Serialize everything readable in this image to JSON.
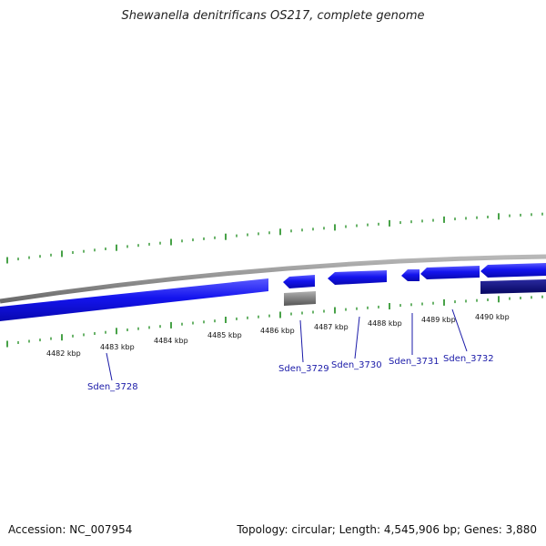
{
  "title": "Shewanella denitrificans OS217, complete genome",
  "footer": {
    "accession": "Accession: NC_007954",
    "summary": "Topology: circular; Length: 4,545,906 bp; Genes: 3,880"
  },
  "colors": {
    "backbone": "#8a8a8a",
    "gene_forward": "#1010ee",
    "gene_reverse": "#0a0a80",
    "gene_other": "#777777",
    "ticks": "#1a8a1a",
    "gene_label": "#1a1aa8",
    "leader": "#1a1aa8"
  },
  "scale": {
    "unit": "kbp",
    "labels": [
      {
        "kbp": 4482,
        "text": "4482 kbp"
      },
      {
        "kbp": 4483,
        "text": "4483 kbp"
      },
      {
        "kbp": 4484,
        "text": "4484 kbp"
      },
      {
        "kbp": 4485,
        "text": "4485 kbp"
      },
      {
        "kbp": 4486,
        "text": "4486 kbp"
      },
      {
        "kbp": 4487,
        "text": "4487 kbp"
      },
      {
        "kbp": 4488,
        "text": "4488 kbp"
      },
      {
        "kbp": 4489,
        "text": "4489 kbp"
      },
      {
        "kbp": 4490,
        "text": "4490 kbp"
      }
    ]
  },
  "genes": [
    {
      "name": "Sden_3728",
      "label": "Sden_3728"
    },
    {
      "name": "Sden_3729",
      "label": "Sden_3729"
    },
    {
      "name": "Sden_3730",
      "label": "Sden_3730"
    },
    {
      "name": "Sden_3731",
      "label": "Sden_3731"
    },
    {
      "name": "Sden_3732",
      "label": "Sden_3732"
    }
  ]
}
